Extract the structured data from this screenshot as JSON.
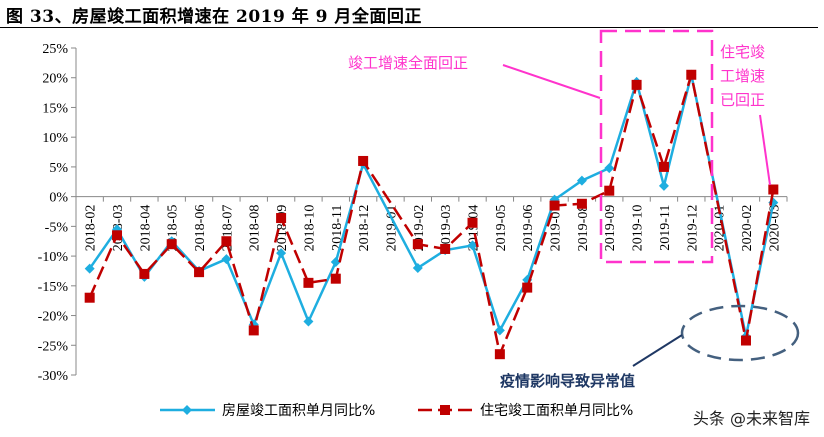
{
  "title": "图 33、房屋竣工面积增速在 2019 年 9 月全面回正",
  "watermark": "头条 @未来智库",
  "chart_data": {
    "type": "line",
    "title": "图 33、房屋竣工面积增速在 2019 年 9 月全面回正",
    "categories": [
      "2018-02",
      "2018-03",
      "2018-04",
      "2018-05",
      "2018-06",
      "2018-07",
      "2018-08",
      "2018-09",
      "2018-10",
      "2018-11",
      "2018-12",
      "2019-01",
      "2019-02",
      "2019-03",
      "2019-04",
      "2019-05",
      "2019-06",
      "2019-07",
      "2019-08",
      "2019-09",
      "2019-10",
      "2019-11",
      "2019-12",
      "2020-01",
      "2020-02",
      "2020-03"
    ],
    "ylim": [
      -30,
      25
    ],
    "yticks": [
      25,
      20,
      15,
      10,
      5,
      0,
      -5,
      -10,
      -15,
      -20,
      -25,
      -30
    ],
    "ytick_labels": [
      "25%",
      "20%",
      "15%",
      "10%",
      "5%",
      "0%",
      "-5%",
      "-10%",
      "-15%",
      "-20%",
      "-25%",
      "-30%"
    ],
    "grid": false,
    "legend_position": "bottom",
    "series": [
      {
        "name": "房屋竣工面积单月同比%",
        "color": "#1EAEE0",
        "style": "solid",
        "marker": "diamond",
        "values": [
          -12.1,
          -5.5,
          -13.5,
          -7.5,
          -12.5,
          -10.5,
          -21.5,
          -9.5,
          -21.0,
          -11.0,
          5.5,
          null,
          -12.0,
          -9.0,
          -8.2,
          -22.5,
          -14.0,
          -0.5,
          2.7,
          4.8,
          19.3,
          1.8,
          20.5,
          null,
          -23.5,
          -1.0
        ]
      },
      {
        "name": "住宅竣工面积单月同比%",
        "color": "#C00000",
        "style": "dashed",
        "marker": "square",
        "values": [
          -17.0,
          -6.5,
          -13.0,
          -8.0,
          -12.7,
          -7.5,
          -22.5,
          -3.6,
          -14.5,
          -13.8,
          6.0,
          null,
          -8.0,
          -8.8,
          -4.4,
          -26.5,
          -15.3,
          -1.5,
          -1.2,
          1.0,
          18.8,
          5.0,
          20.5,
          null,
          -24.2,
          1.2
        ]
      }
    ],
    "annotations": [
      {
        "text": "竣工增速全面回正",
        "color": "#FF33CC"
      },
      {
        "text_lines": [
          "住宅竣",
          "工增速",
          "已回正"
        ],
        "color": "#FF33CC"
      },
      {
        "text": "疫情影响导致异常值",
        "color": "#1F3864"
      }
    ]
  }
}
